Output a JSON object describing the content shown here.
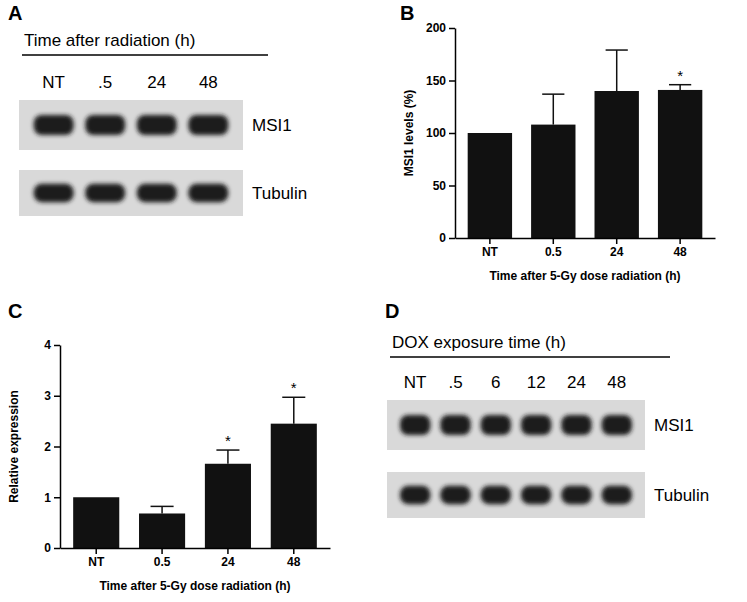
{
  "panels": [
    {
      "label": "A",
      "title": "Time after radiation (h)",
      "lanes": [
        "NT",
        ".5",
        "24",
        "48"
      ],
      "rows": [
        "MSI1",
        "Tubulin"
      ]
    },
    {
      "label": "D",
      "title": "DOX exposure time (h)",
      "lanes": [
        "NT",
        ".5",
        "6",
        "12",
        "24",
        "48"
      ],
      "rows": [
        "MSI1",
        "Tubulin"
      ]
    }
  ],
  "chart_data": [
    {
      "label": "B",
      "type": "bar",
      "categories": [
        "NT",
        "0.5",
        "24",
        "48"
      ],
      "values": [
        100,
        108,
        140,
        141
      ],
      "errors": [
        null,
        29,
        39,
        5
      ],
      "significance": [
        null,
        null,
        null,
        "*"
      ],
      "xlabel": "Time after 5-Gy dose radiation (h)",
      "ylabel": "MSI1 levels (%)",
      "color": "#111111",
      "ylim": [
        0,
        200
      ],
      "yticks": [
        0,
        50,
        100,
        150,
        200
      ]
    },
    {
      "label": "C",
      "type": "bar",
      "categories": [
        "NT",
        "0.5",
        "24",
        "48"
      ],
      "values": [
        1,
        0.68,
        1.66,
        2.45
      ],
      "errors": [
        null,
        0.14,
        0.27,
        0.52
      ],
      "significance": [
        null,
        null,
        "*",
        "*"
      ],
      "xlabel": "Time after 5-Gy dose radiation (h)",
      "ylabel": "Relative expression",
      "color": "#111111",
      "ylim": [
        0,
        4
      ],
      "yticks": [
        0,
        1,
        2,
        3,
        4
      ]
    }
  ]
}
